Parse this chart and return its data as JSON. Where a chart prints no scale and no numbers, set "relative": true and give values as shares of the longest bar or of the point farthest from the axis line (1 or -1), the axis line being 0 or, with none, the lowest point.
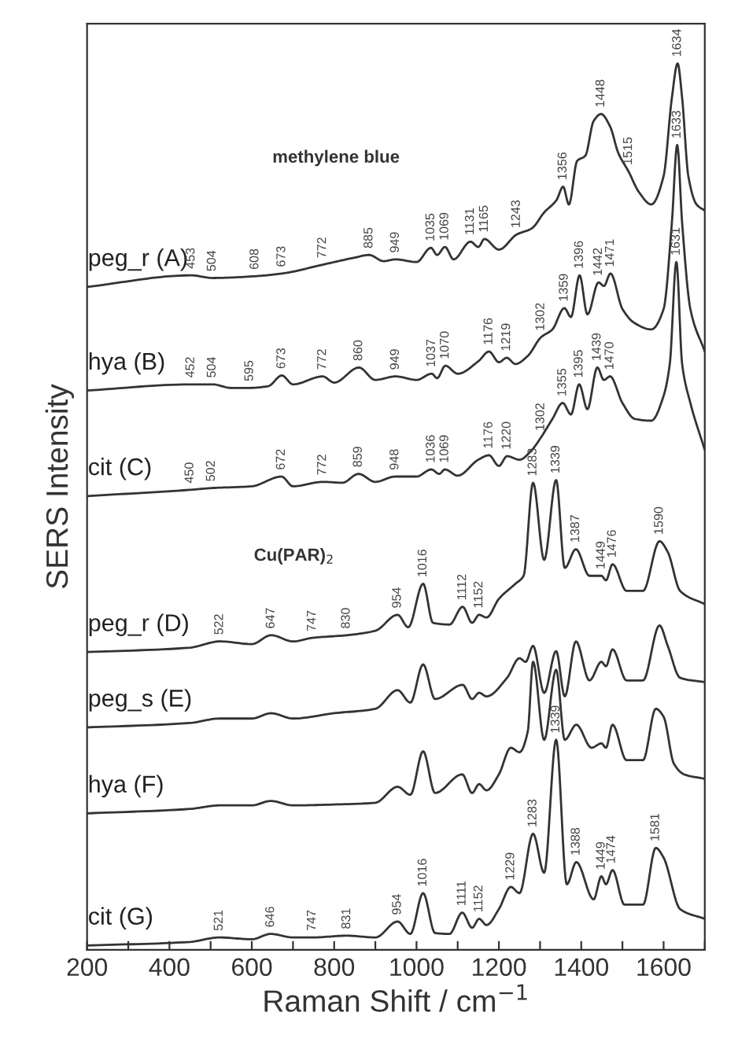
{
  "chart_data": {
    "type": "line",
    "relative": true,
    "xlabel": "Raman Shift / cm$^{−1}$",
    "ylabel": "SERS Intensity",
    "xlim": [
      200,
      1700
    ],
    "xticks": [
      200,
      {
        "value": 300,
        "label": null
      },
      400,
      {
        "value": 500,
        "label": null
      },
      600,
      {
        "value": 700,
        "label": null
      },
      800,
      {
        "value": 900,
        "label": null
      },
      1000,
      {
        "value": 1100,
        "label": null
      },
      1200,
      {
        "value": 1300,
        "label": null
      },
      1400,
      {
        "value": 1500,
        "label": null
      },
      1600,
      {
        "value": 1700,
        "label": null
      }
    ],
    "grid": false,
    "legend": false,
    "marker": "none",
    "line_style": "solid",
    "series": [
      {
        "name": "peg_r (A)",
        "color": "#333333",
        "x": [
          200,
          453,
          504,
          608,
          673,
          772,
          850,
          885,
          920,
          949,
          1000,
          1035,
          1050,
          1069,
          1090,
          1131,
          1150,
          1165,
          1200,
          1243,
          1280,
          1310,
          1340,
          1356,
          1370,
          1390,
          1410,
          1430,
          1448,
          1470,
          1490,
          1515,
          1540,
          1570,
          1600,
          1620,
          1634,
          1645,
          1660,
          1680,
          1700
        ],
        "values": [
          0.748,
          0.761,
          0.758,
          0.76,
          0.763,
          0.773,
          0.781,
          0.784,
          0.777,
          0.779,
          0.776,
          0.792,
          0.784,
          0.793,
          0.779,
          0.799,
          0.793,
          0.802,
          0.79,
          0.807,
          0.814,
          0.832,
          0.846,
          0.861,
          0.841,
          0.89,
          0.896,
          0.935,
          0.943,
          0.929,
          0.899,
          0.878,
          0.855,
          0.841,
          0.873,
          0.961,
          1.0,
          0.961,
          0.873,
          0.841,
          0.834
        ]
      },
      {
        "name": "hya (B)",
        "color": "#333333",
        "x": [
          200,
          452,
          504,
          550,
          595,
          640,
          673,
          700,
          772,
          800,
          860,
          900,
          949,
          1000,
          1037,
          1050,
          1070,
          1100,
          1150,
          1176,
          1200,
          1219,
          1240,
          1270,
          1302,
          1330,
          1359,
          1375,
          1396,
          1415,
          1442,
          1455,
          1471,
          1500,
          1530,
          1570,
          1600,
          1620,
          1633,
          1645,
          1665,
          1700
        ],
        "values": [
          0.631,
          0.638,
          0.638,
          0.634,
          0.634,
          0.636,
          0.648,
          0.638,
          0.647,
          0.64,
          0.657,
          0.643,
          0.647,
          0.643,
          0.65,
          0.645,
          0.659,
          0.65,
          0.664,
          0.675,
          0.663,
          0.668,
          0.661,
          0.67,
          0.691,
          0.7,
          0.724,
          0.714,
          0.761,
          0.717,
          0.753,
          0.749,
          0.763,
          0.723,
          0.707,
          0.7,
          0.723,
          0.82,
          0.908,
          0.82,
          0.723,
          0.675
        ]
      },
      {
        "name": "cit (C)",
        "color": "#333333",
        "x": [
          200,
          450,
          502,
          600,
          672,
          700,
          772,
          820,
          859,
          900,
          948,
          1000,
          1036,
          1055,
          1069,
          1100,
          1150,
          1176,
          1200,
          1220,
          1250,
          1280,
          1302,
          1330,
          1355,
          1375,
          1395,
          1415,
          1439,
          1455,
          1470,
          1500,
          1530,
          1570,
          1600,
          1615,
          1631,
          1645,
          1665,
          1700
        ],
        "values": [
          0.512,
          0.519,
          0.521,
          0.523,
          0.534,
          0.523,
          0.528,
          0.527,
          0.537,
          0.528,
          0.534,
          0.534,
          0.542,
          0.537,
          0.542,
          0.535,
          0.553,
          0.558,
          0.546,
          0.557,
          0.553,
          0.564,
          0.578,
          0.599,
          0.617,
          0.604,
          0.638,
          0.61,
          0.657,
          0.643,
          0.647,
          0.617,
          0.599,
          0.597,
          0.625,
          0.661,
          0.776,
          0.661,
          0.617,
          0.564
        ]
      },
      {
        "name": "peg_r (D)",
        "color": "#333333",
        "x": [
          200,
          450,
          522,
          600,
          647,
          700,
          747,
          830,
          900,
          954,
          980,
          1016,
          1040,
          1080,
          1112,
          1135,
          1152,
          1170,
          1200,
          1240,
          1260,
          1283,
          1310,
          1339,
          1360,
          1387,
          1420,
          1449,
          1460,
          1476,
          1510,
          1550,
          1590,
          1610,
          1640,
          1700
        ],
        "values": [
          0.336,
          0.341,
          0.348,
          0.345,
          0.355,
          0.348,
          0.352,
          0.355,
          0.36,
          0.378,
          0.364,
          0.413,
          0.369,
          0.367,
          0.387,
          0.369,
          0.378,
          0.375,
          0.396,
          0.413,
          0.422,
          0.527,
          0.44,
          0.53,
          0.431,
          0.452,
          0.422,
          0.422,
          0.417,
          0.435,
          0.405,
          0.405,
          0.461,
          0.449,
          0.405,
          0.39
        ]
      },
      {
        "name": "peg_s (E)",
        "color": "#333333",
        "x": [
          200,
          450,
          522,
          600,
          647,
          700,
          800,
          900,
          954,
          985,
          1016,
          1045,
          1112,
          1135,
          1152,
          1170,
          1220,
          1250,
          1265,
          1283,
          1310,
          1339,
          1360,
          1387,
          1420,
          1449,
          1460,
          1476,
          1510,
          1550,
          1590,
          1610,
          1640,
          1700
        ],
        "values": [
          0.251,
          0.256,
          0.261,
          0.261,
          0.267,
          0.261,
          0.267,
          0.272,
          0.293,
          0.279,
          0.322,
          0.283,
          0.299,
          0.283,
          0.29,
          0.286,
          0.307,
          0.329,
          0.325,
          0.343,
          0.29,
          0.337,
          0.286,
          0.348,
          0.304,
          0.325,
          0.32,
          0.339,
          0.304,
          0.304,
          0.366,
          0.343,
          0.307,
          0.302
        ]
      },
      {
        "name": "hya (F)",
        "color": "#333333",
        "x": [
          200,
          450,
          521,
          600,
          646,
          700,
          800,
          900,
          954,
          985,
          1016,
          1045,
          1111,
          1135,
          1152,
          1170,
          1200,
          1229,
          1250,
          1270,
          1283,
          1310,
          1339,
          1360,
          1388,
          1425,
          1449,
          1460,
          1476,
          1510,
          1550,
          1581,
          1600,
          1625,
          1650,
          1700
        ],
        "values": [
          0.154,
          0.159,
          0.163,
          0.163,
          0.168,
          0.163,
          0.164,
          0.166,
          0.184,
          0.175,
          0.224,
          0.177,
          0.198,
          0.177,
          0.187,
          0.18,
          0.198,
          0.228,
          0.223,
          0.246,
          0.325,
          0.237,
          0.316,
          0.237,
          0.254,
          0.228,
          0.233,
          0.228,
          0.254,
          0.214,
          0.214,
          0.272,
          0.263,
          0.21,
          0.198,
          0.193
        ]
      },
      {
        "name": "cit (G)",
        "color": "#333333",
        "x": [
          200,
          450,
          521,
          600,
          646,
          700,
          747,
          831,
          900,
          954,
          985,
          1016,
          1045,
          1080,
          1111,
          1135,
          1152,
          1170,
          1200,
          1229,
          1250,
          1283,
          1310,
          1339,
          1365,
          1388,
          1430,
          1449,
          1460,
          1476,
          1505,
          1550,
          1581,
          1600,
          1640,
          1700
        ],
        "values": [
          0.005,
          0.009,
          0.014,
          0.012,
          0.018,
          0.014,
          0.014,
          0.016,
          0.014,
          0.032,
          0.018,
          0.064,
          0.019,
          0.018,
          0.042,
          0.025,
          0.035,
          0.028,
          0.046,
          0.071,
          0.064,
          0.131,
          0.087,
          0.237,
          0.074,
          0.099,
          0.057,
          0.083,
          0.074,
          0.09,
          0.051,
          0.051,
          0.115,
          0.104,
          0.046,
          0.035
        ]
      }
    ],
    "annotations": [
      "methylene blue",
      "Cu(PAR)$_{2}$",
      {
        "text": "453",
        "x": 453,
        "y": 0.761
      },
      {
        "text": "504",
        "x": 504,
        "y": 0.758
      },
      {
        "text": "608",
        "x": 608,
        "y": 0.76
      },
      {
        "text": "673",
        "x": 673,
        "y": 0.763
      },
      {
        "text": "772",
        "x": 772,
        "y": 0.773
      },
      {
        "text": "885",
        "x": 885,
        "y": 0.784
      },
      {
        "text": "949",
        "x": 949,
        "y": 0.779
      },
      {
        "text": "1035",
        "x": 1035,
        "y": 0.792
      },
      {
        "text": "1069",
        "x": 1069,
        "y": 0.793
      },
      {
        "text": "1131",
        "x": 1131,
        "y": 0.799
      },
      {
        "text": "1165",
        "x": 1165,
        "y": 0.802
      },
      {
        "text": "1243",
        "x": 1243,
        "y": 0.807
      },
      {
        "text": "1356",
        "x": 1356,
        "y": 0.861
      },
      {
        "text": "1448",
        "x": 1448,
        "y": 0.943
      },
      {
        "text": "1515",
        "x": 1515,
        "y": 0.878
      },
      {
        "text": "1634",
        "x": 1634,
        "y": 1.0
      },
      {
        "text": "452",
        "x": 452,
        "y": 0.638
      },
      {
        "text": "504",
        "x": 504,
        "y": 0.638
      },
      {
        "text": "595",
        "x": 595,
        "y": 0.634
      },
      {
        "text": "673",
        "x": 673,
        "y": 0.648
      },
      {
        "text": "772",
        "x": 772,
        "y": 0.647
      },
      {
        "text": "860",
        "x": 860,
        "y": 0.657
      },
      {
        "text": "949",
        "x": 949,
        "y": 0.647
      },
      {
        "text": "1037",
        "x": 1037,
        "y": 0.65
      },
      {
        "text": "1070",
        "x": 1070,
        "y": 0.659
      },
      {
        "text": "1176",
        "x": 1176,
        "y": 0.675
      },
      {
        "text": "1219",
        "x": 1219,
        "y": 0.668
      },
      {
        "text": "1302",
        "x": 1302,
        "y": 0.691
      },
      {
        "text": "1359",
        "x": 1359,
        "y": 0.724
      },
      {
        "text": "1396",
        "x": 1396,
        "y": 0.761
      },
      {
        "text": "1442",
        "x": 1442,
        "y": 0.753
      },
      {
        "text": "1471",
        "x": 1471,
        "y": 0.763
      },
      {
        "text": "1633",
        "x": 1633,
        "y": 0.908
      },
      {
        "text": "450",
        "x": 450,
        "y": 0.519
      },
      {
        "text": "502",
        "x": 502,
        "y": 0.521
      },
      {
        "text": "672",
        "x": 672,
        "y": 0.534
      },
      {
        "text": "772",
        "x": 772,
        "y": 0.528
      },
      {
        "text": "859",
        "x": 859,
        "y": 0.537
      },
      {
        "text": "948",
        "x": 948,
        "y": 0.534
      },
      {
        "text": "1036",
        "x": 1036,
        "y": 0.542
      },
      {
        "text": "1069",
        "x": 1069,
        "y": 0.542
      },
      {
        "text": "1176",
        "x": 1176,
        "y": 0.558
      },
      {
        "text": "1220",
        "x": 1220,
        "y": 0.557
      },
      {
        "text": "1302",
        "x": 1302,
        "y": 0.578
      },
      {
        "text": "1355",
        "x": 1355,
        "y": 0.617
      },
      {
        "text": "1395",
        "x": 1395,
        "y": 0.638
      },
      {
        "text": "1439",
        "x": 1439,
        "y": 0.657
      },
      {
        "text": "1470",
        "x": 1470,
        "y": 0.647
      },
      {
        "text": "1631",
        "x": 1631,
        "y": 0.776
      },
      {
        "text": "522",
        "x": 522,
        "y": 0.348
      },
      {
        "text": "647",
        "x": 647,
        "y": 0.355
      },
      {
        "text": "747",
        "x": 747,
        "y": 0.352
      },
      {
        "text": "830",
        "x": 830,
        "y": 0.355
      },
      {
        "text": "954",
        "x": 954,
        "y": 0.378
      },
      {
        "text": "1016",
        "x": 1016,
        "y": 0.413
      },
      {
        "text": "1112",
        "x": 1112,
        "y": 0.387
      },
      {
        "text": "1152",
        "x": 1152,
        "y": 0.378
      },
      {
        "text": "1283",
        "x": 1283,
        "y": 0.527
      },
      {
        "text": "1339",
        "x": 1339,
        "y": 0.53
      },
      {
        "text": "1387",
        "x": 1387,
        "y": 0.452
      },
      {
        "text": "1449",
        "x": 1449,
        "y": 0.422
      },
      {
        "text": "1476",
        "x": 1476,
        "y": 0.435
      },
      {
        "text": "1590",
        "x": 1590,
        "y": 0.461
      },
      {
        "text": "521",
        "x": 521,
        "y": 0.014
      },
      {
        "text": "646",
        "x": 646,
        "y": 0.018
      },
      {
        "text": "747",
        "x": 747,
        "y": 0.014
      },
      {
        "text": "831",
        "x": 831,
        "y": 0.016
      },
      {
        "text": "954",
        "x": 954,
        "y": 0.032
      },
      {
        "text": "1016",
        "x": 1016,
        "y": 0.064
      },
      {
        "text": "1111",
        "x": 1111,
        "y": 0.042
      },
      {
        "text": "1152",
        "x": 1152,
        "y": 0.035
      },
      {
        "text": "1229",
        "x": 1229,
        "y": 0.071
      },
      {
        "text": "1283",
        "x": 1283,
        "y": 0.131
      },
      {
        "text": "1339",
        "x": 1339,
        "y": 0.237
      },
      {
        "text": "1388",
        "x": 1388,
        "y": 0.099
      },
      {
        "text": "1449",
        "x": 1449,
        "y": 0.083
      },
      {
        "text": "1474",
        "x": 1474,
        "y": 0.09
      },
      {
        "text": "1581",
        "x": 1581,
        "y": 0.115
      }
    ]
  }
}
